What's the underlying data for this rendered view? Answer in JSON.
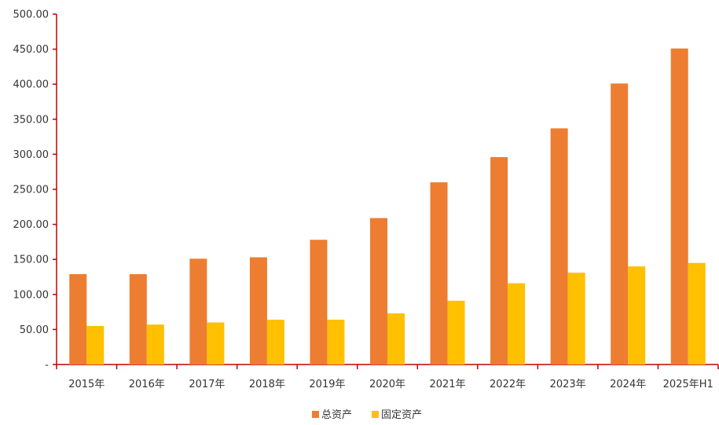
{
  "chart_data": {
    "type": "bar",
    "categories": [
      "2015年",
      "2016年",
      "2017年",
      "2018年",
      "2019年",
      "2020年",
      "2021年",
      "2022年",
      "2023年",
      "2024年",
      "2025年H1"
    ],
    "series": [
      {
        "name": "总资产",
        "color": "#ED7D31",
        "values": [
          129,
          129,
          151,
          153,
          178,
          209,
          260,
          296,
          337,
          401,
          451
        ]
      },
      {
        "name": "固定资产",
        "color": "#FFC000",
        "values": [
          55,
          57,
          60,
          64,
          64,
          73,
          91,
          116,
          131,
          140,
          145
        ]
      }
    ],
    "ylim": [
      0,
      500
    ],
    "yticks": [
      "-",
      "50.00",
      "100.00",
      "150.00",
      "200.00",
      "250.00",
      "300.00",
      "350.00",
      "400.00",
      "450.00",
      "500.00"
    ],
    "axis_color": "#C00000",
    "grid": false,
    "legend_position": "bottom-center"
  }
}
